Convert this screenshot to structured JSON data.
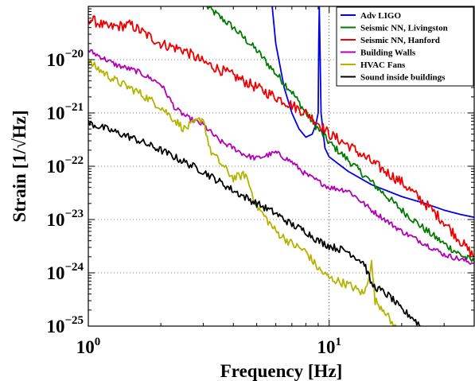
{
  "chart_data": {
    "type": "line",
    "xlabel": "Frequency [Hz]",
    "ylabel": "Strain [1/√Hz]",
    "xscale": "log",
    "yscale": "log",
    "xlim": [
      1,
      40
    ],
    "ylim": [
      1e-25,
      1e-19
    ],
    "grid": true,
    "legend_position": "top-right",
    "x_tick_labels": [
      {
        "value": 1,
        "base": "10",
        "exp": "0"
      },
      {
        "value": 10,
        "base": "10",
        "exp": "1"
      }
    ],
    "y_tick_labels": [
      {
        "value": 1e-20,
        "base": "10",
        "exp": "−20"
      },
      {
        "value": 1e-21,
        "base": "10",
        "exp": "−21"
      },
      {
        "value": 1e-22,
        "base": "10",
        "exp": "−22"
      },
      {
        "value": 1e-23,
        "base": "10",
        "exp": "−23"
      },
      {
        "value": 1e-24,
        "base": "10",
        "exp": "−24"
      },
      {
        "value": 1e-25,
        "base": "10",
        "exp": "−25"
      }
    ],
    "series": [
      {
        "name": "Adv LIGO",
        "color": "#0000ee",
        "noise": 0,
        "points": [
          [
            5.8,
            1e-19
          ],
          [
            6.0,
            2e-20
          ],
          [
            6.5,
            3e-21
          ],
          [
            7.0,
            1e-21
          ],
          [
            7.5,
            5e-22
          ],
          [
            8.0,
            3.5e-22
          ],
          [
            8.5,
            4e-22
          ],
          [
            8.8,
            6e-22
          ],
          [
            9.0,
            1e-21
          ],
          [
            9.05,
            2e-20
          ],
          [
            9.1,
            1e-19
          ],
          [
            9.15,
            2e-20
          ],
          [
            9.25,
            1e-21
          ],
          [
            9.6,
            2.2e-22
          ],
          [
            10,
            1.5e-22
          ],
          [
            12,
            8e-23
          ],
          [
            15,
            4.5e-23
          ],
          [
            20,
            2.7e-23
          ],
          [
            25,
            2e-23
          ],
          [
            30,
            1.5e-23
          ],
          [
            35,
            1.25e-23
          ],
          [
            40,
            1.1e-23
          ]
        ]
      },
      {
        "name": "Seismic NN, Livingston",
        "color": "#007a00",
        "noise": 0.07,
        "points": [
          [
            3.1,
            1e-19
          ],
          [
            4,
            4e-20
          ],
          [
            5,
            1.5e-20
          ],
          [
            6,
            5.5e-21
          ],
          [
            7,
            2.5e-21
          ],
          [
            8,
            1e-21
          ],
          [
            9,
            5e-22
          ],
          [
            10,
            2.8e-22
          ],
          [
            12,
            1.3e-22
          ],
          [
            15,
            5e-23
          ],
          [
            20,
            1.5e-23
          ],
          [
            25,
            6.5e-24
          ],
          [
            30,
            3.5e-24
          ],
          [
            35,
            2.2e-24
          ],
          [
            40,
            1.6e-24
          ]
        ]
      },
      {
        "name": "Seismic NN, Hanford",
        "color": "#ee0000",
        "noise": 0.1,
        "points": [
          [
            1,
            6e-20
          ],
          [
            1.2,
            4e-20
          ],
          [
            1.5,
            4.5e-20
          ],
          [
            2,
            2e-20
          ],
          [
            2.5,
            1.5e-20
          ],
          [
            3,
            9e-21
          ],
          [
            4,
            5e-21
          ],
          [
            5,
            3e-21
          ],
          [
            6,
            2e-21
          ],
          [
            7,
            1.4e-21
          ],
          [
            8,
            1e-21
          ],
          [
            9,
            6.5e-22
          ],
          [
            10,
            4e-22
          ],
          [
            12,
            2.5e-22
          ],
          [
            15,
            1.2e-22
          ],
          [
            20,
            5e-23
          ],
          [
            25,
            2e-23
          ],
          [
            30,
            9e-24
          ],
          [
            35,
            4e-24
          ],
          [
            40,
            2e-24
          ]
        ]
      },
      {
        "name": "Building Walls",
        "color": "#b400b4",
        "noise": 0.05,
        "points": [
          [
            1,
            1.5e-20
          ],
          [
            1.3,
            8e-21
          ],
          [
            1.6,
            6e-21
          ],
          [
            2,
            3.5e-21
          ],
          [
            2.3,
            1.2e-21
          ],
          [
            2.6,
            8e-22
          ],
          [
            3,
            6e-22
          ],
          [
            3.5,
            3e-22
          ],
          [
            4,
            2.2e-22
          ],
          [
            4.5,
            1.6e-22
          ],
          [
            5,
            1.4e-22
          ],
          [
            6,
            1.8e-22
          ],
          [
            7,
            1.2e-22
          ],
          [
            8,
            7e-23
          ],
          [
            10,
            4e-23
          ],
          [
            12,
            3.5e-23
          ],
          [
            15,
            1.5e-23
          ],
          [
            20,
            6e-24
          ],
          [
            25,
            3.5e-24
          ],
          [
            30,
            2.2e-24
          ],
          [
            35,
            1.8e-24
          ],
          [
            40,
            1.5e-24
          ]
        ]
      },
      {
        "name": "HVAC Fans",
        "color": "#b4b400",
        "noise": 0.08,
        "points": [
          [
            1,
            9e-21
          ],
          [
            1.3,
            4e-21
          ],
          [
            1.6,
            2.5e-21
          ],
          [
            2,
            1.3e-21
          ],
          [
            2.5,
            5e-22
          ],
          [
            3,
            8e-22
          ],
          [
            3.2,
            2e-22
          ],
          [
            3.5,
            1.2e-22
          ],
          [
            4,
            6e-23
          ],
          [
            4.5,
            7e-23
          ],
          [
            5,
            1.8e-23
          ],
          [
            6,
            6e-24
          ],
          [
            7,
            3.5e-24
          ],
          [
            8,
            2.5e-24
          ],
          [
            9,
            1.2e-24
          ],
          [
            10,
            8e-25
          ],
          [
            12,
            6e-25
          ],
          [
            14,
            4e-25
          ],
          [
            15,
            1.5e-24
          ],
          [
            15.5,
            3e-25
          ],
          [
            17,
            2e-25
          ],
          [
            18,
            1.2e-25
          ],
          [
            19,
            1e-25
          ]
        ]
      },
      {
        "name": "Sound inside buildings",
        "color": "#000000",
        "noise": 0.07,
        "points": [
          [
            1,
            6.5e-22
          ],
          [
            1.5,
            3.5e-22
          ],
          [
            2,
            2e-22
          ],
          [
            3,
            8e-23
          ],
          [
            4,
            3.5e-23
          ],
          [
            5,
            2e-23
          ],
          [
            6,
            1.3e-23
          ],
          [
            7,
            8e-24
          ],
          [
            8,
            6e-24
          ],
          [
            9,
            4e-24
          ],
          [
            10,
            3.2e-24
          ],
          [
            12,
            2.5e-24
          ],
          [
            14,
            1.5e-24
          ],
          [
            15,
            6e-25
          ],
          [
            16,
            5e-25
          ],
          [
            18,
            3.5e-25
          ],
          [
            20,
            2e-25
          ],
          [
            22,
            1.5e-25
          ],
          [
            24,
            1e-25
          ]
        ]
      }
    ]
  }
}
